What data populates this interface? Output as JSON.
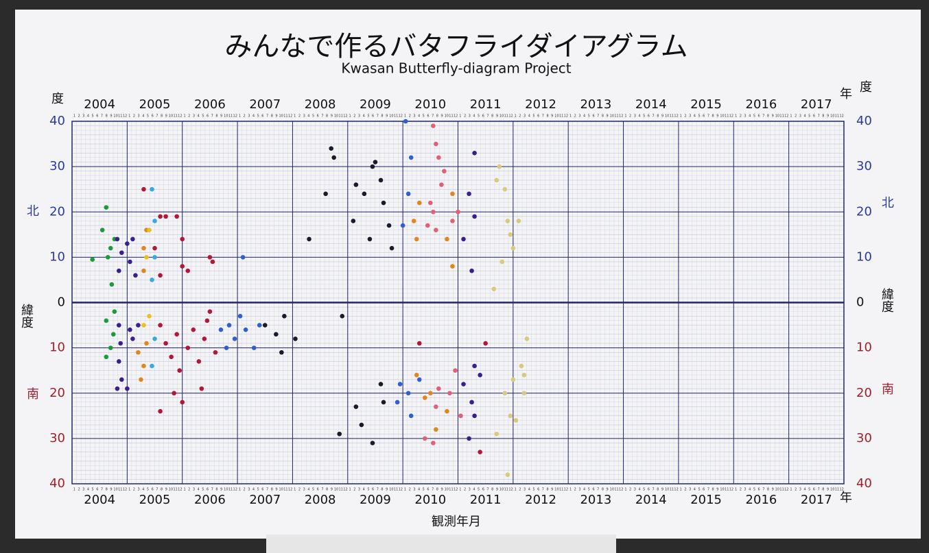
{
  "chart_data": {
    "type": "scatter",
    "title": "みんなで作るバタフライダイアグラム",
    "subtitle": "Kwasan Butterfly-diagram Project",
    "x_label": "観測年月",
    "year_unit": "年",
    "y_label": "度",
    "north_label": "北",
    "south_label": "南",
    "lat_label": "緯度",
    "month_labels": [
      1,
      2,
      3,
      4,
      5,
      6,
      7,
      8,
      9,
      10,
      11,
      12
    ],
    "xlim": [
      2004,
      2018
    ],
    "xticks": [
      2004,
      2005,
      2006,
      2007,
      2008,
      2009,
      2010,
      2011,
      2012,
      2013,
      2014,
      2015,
      2016,
      2017
    ],
    "ylim": [
      -40,
      40
    ],
    "yticks": [
      {
        "value": -40,
        "label": "40"
      },
      {
        "value": -30,
        "label": "30"
      },
      {
        "value": -20,
        "label": "20"
      },
      {
        "value": -10,
        "label": "10"
      },
      0,
      10,
      20,
      30,
      40
    ],
    "grid": true,
    "series": [
      {
        "color": "#1b9a3e",
        "x": [
          2004.37,
          2004.55,
          2004.62,
          2004.7,
          2004.77,
          2004.65,
          2004.72,
          2004.62,
          2004.75,
          2004.62,
          2004.7,
          2004.77
        ],
        "values": [
          9.5,
          16,
          21,
          12,
          14,
          10,
          4,
          -4,
          -7,
          -12,
          -10,
          -2
        ]
      },
      {
        "color": "#3a1f8f",
        "x": [
          2004.82,
          2004.9,
          2004.85,
          2005.05,
          2005.1,
          2005.15,
          2005.0,
          2004.85,
          2004.88,
          2004.85,
          2004.9,
          2004.82,
          2005.05,
          2005.1,
          2005.2,
          2005.0,
          2011.2,
          2011.3,
          2011.1,
          2011.25,
          2011.3,
          2011.1,
          2011.3,
          2011.25,
          2011.2,
          2011.4,
          2011.3
        ],
        "values": [
          14,
          11,
          7,
          9,
          14,
          6,
          13,
          -5,
          -9,
          -13,
          -17,
          -19,
          -6,
          -8,
          -5,
          -19,
          24,
          19,
          14,
          7,
          33,
          -18,
          -14,
          -22,
          -30,
          -16,
          -25
        ]
      },
      {
        "color": "#e0861e",
        "x": [
          2005.3,
          2005.35,
          2005.3,
          2005.2,
          2005.3,
          2005.25,
          2005.35,
          2010.2,
          2010.25,
          2010.3,
          2010.8,
          2010.9,
          2010.9,
          2010.25,
          2010.5,
          2010.8,
          2010.6,
          2010.4
        ],
        "values": [
          12,
          16,
          7,
          -11,
          -14,
          -17,
          -9,
          18,
          14,
          22,
          14,
          8,
          24,
          -16,
          -20,
          -24,
          -28,
          -21
        ]
      },
      {
        "color": "#e8c020",
        "x": [
          2005.3,
          2005.4,
          2005.35,
          2005.4
        ],
        "values": [
          -5,
          -3,
          10,
          16
        ]
      },
      {
        "color": "#3aa8e0",
        "x": [
          2005.45,
          2005.5,
          2005.5,
          2005.45,
          2005.5,
          2005.45
        ],
        "values": [
          25,
          18,
          10,
          5,
          -8,
          -14
        ]
      },
      {
        "color": "#b0183a",
        "x": [
          2005.3,
          2005.6,
          2005.7,
          2005.5,
          2005.6,
          2005.9,
          2006.0,
          2006.0,
          2006.1,
          2006.5,
          2006.55,
          2005.6,
          2005.7,
          2005.8,
          2005.9,
          2005.95,
          2006.1,
          2006.2,
          2006.3,
          2006.4,
          2006.45,
          2006.5,
          2006.6,
          2005.85,
          2005.6,
          2006.0,
          2006.35,
          2011.4,
          2010.3,
          2011.5
        ],
        "values": [
          25,
          19,
          19,
          12,
          6,
          19,
          14,
          8,
          7,
          10,
          9,
          -5,
          -9,
          -12,
          -7,
          -15,
          -10,
          -6,
          -13,
          -8,
          -4,
          -2,
          -11,
          -20,
          -24,
          -22,
          -19,
          -33,
          -9,
          -9
        ]
      },
      {
        "color": "#2f5fd0",
        "x": [
          2006.7,
          2006.85,
          2006.95,
          2007.05,
          2007.15,
          2007.3,
          2007.4,
          2007.1,
          2006.8,
          2010.05,
          2010.1,
          2010.15,
          2010.0,
          2009.9,
          2010.1,
          2010.15,
          2009.95,
          2010.3
        ],
        "values": [
          -6,
          -5,
          -8,
          -3,
          -6,
          -10,
          -5,
          10,
          -10,
          40,
          24,
          32,
          17,
          -22,
          -20,
          -25,
          -18,
          -17
        ]
      },
      {
        "color": "#1a1a2a",
        "x": [
          2007.5,
          2007.7,
          2007.8,
          2007.85,
          2008.05,
          2008.3,
          2008.7,
          2008.75,
          2008.6,
          2008.9,
          2008.85,
          2009.1,
          2009.15,
          2009.3,
          2009.4,
          2009.45,
          2009.5,
          2009.6,
          2009.65,
          2009.75,
          2009.8,
          2009.15,
          2009.25,
          2009.45,
          2009.6,
          2009.65
        ],
        "values": [
          -5,
          -7,
          -11,
          -3,
          -8,
          14,
          34,
          32,
          24,
          -3,
          -29,
          18,
          26,
          24,
          14,
          30,
          31,
          27,
          22,
          17,
          12,
          -23,
          -27,
          -31,
          -18,
          -22
        ]
      },
      {
        "color": "#e0607a",
        "x": [
          2010.55,
          2010.6,
          2010.65,
          2010.7,
          2010.55,
          2010.6,
          2010.5,
          2010.75,
          2011.0,
          2010.9,
          2010.45,
          2010.65,
          2010.6,
          2010.4,
          2010.55,
          2010.85,
          2010.95,
          2011.05
        ],
        "values": [
          39,
          35,
          32,
          26,
          20,
          16,
          22,
          29,
          20,
          18,
          17,
          -19,
          -23,
          -30,
          -31,
          -20,
          -15,
          -25
        ]
      },
      {
        "color": "#d9c97a",
        "x": [
          2011.7,
          2011.75,
          2011.85,
          2011.9,
          2011.95,
          2012.0,
          2012.1,
          2011.8,
          2011.65,
          2011.85,
          2011.95,
          2012.0,
          2012.15,
          2012.2,
          2011.7,
          2012.25,
          2011.9,
          2012.05,
          2012.2
        ],
        "values": [
          27,
          30,
          25,
          18,
          15,
          12,
          18,
          9,
          3,
          -20,
          -25,
          -17,
          -14,
          -20,
          -29,
          -8,
          -38,
          -26,
          -16
        ]
      }
    ]
  }
}
